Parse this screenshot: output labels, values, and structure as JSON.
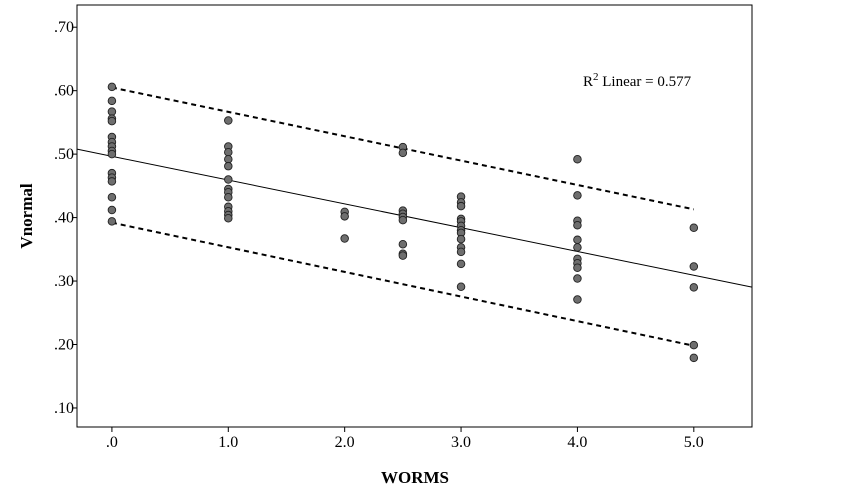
{
  "chart_data": {
    "type": "scatter",
    "title": "",
    "xlabel": "WORMS",
    "ylabel": "Vnormal",
    "xlim": [
      -0.3,
      5.5
    ],
    "ylim": [
      0.07,
      0.735
    ],
    "x_ticks": [
      0,
      1,
      2,
      3,
      4,
      5
    ],
    "x_tick_labels": [
      ".0",
      "1.0",
      "2.0",
      "3.0",
      "4.0",
      "5.0"
    ],
    "y_ticks": [
      0.1,
      0.2,
      0.3,
      0.4,
      0.5,
      0.6,
      0.7
    ],
    "y_tick_labels": [
      ".10",
      ".20",
      ".30",
      ".40",
      ".50",
      ".60",
      ".70"
    ],
    "grid": false,
    "annotation": {
      "r_label": "R",
      "r_sup": "2",
      "text": " Linear = 0.577"
    },
    "fit_line": {
      "intercept": 0.4966,
      "slope": -0.0375,
      "x_range": [
        -0.3,
        5.5
      ]
    },
    "upper_band": {
      "x": [
        0,
        5
      ],
      "y": [
        0.605,
        0.413
      ]
    },
    "lower_band": {
      "x": [
        0,
        5
      ],
      "y": [
        0.392,
        0.198
      ]
    },
    "colors": {
      "point_fill": "#6e6e6e",
      "point_stroke": "#222222",
      "line": "#000000"
    },
    "points": [
      {
        "x": 0,
        "y": 0.606
      },
      {
        "x": 0,
        "y": 0.584
      },
      {
        "x": 0,
        "y": 0.567
      },
      {
        "x": 0,
        "y": 0.556
      },
      {
        "x": 0,
        "y": 0.552
      },
      {
        "x": 0,
        "y": 0.527
      },
      {
        "x": 0,
        "y": 0.519
      },
      {
        "x": 0,
        "y": 0.512
      },
      {
        "x": 0,
        "y": 0.505
      },
      {
        "x": 0,
        "y": 0.5
      },
      {
        "x": 0,
        "y": 0.47
      },
      {
        "x": 0,
        "y": 0.463
      },
      {
        "x": 0,
        "y": 0.457
      },
      {
        "x": 0,
        "y": 0.432
      },
      {
        "x": 0,
        "y": 0.412
      },
      {
        "x": 0,
        "y": 0.394
      },
      {
        "x": 1,
        "y": 0.553
      },
      {
        "x": 1,
        "y": 0.512
      },
      {
        "x": 1,
        "y": 0.503
      },
      {
        "x": 1,
        "y": 0.492
      },
      {
        "x": 1,
        "y": 0.481
      },
      {
        "x": 1,
        "y": 0.46
      },
      {
        "x": 1,
        "y": 0.445
      },
      {
        "x": 1,
        "y": 0.44
      },
      {
        "x": 1,
        "y": 0.432
      },
      {
        "x": 1,
        "y": 0.417
      },
      {
        "x": 1,
        "y": 0.41
      },
      {
        "x": 1,
        "y": 0.404
      },
      {
        "x": 1,
        "y": 0.399
      },
      {
        "x": 2,
        "y": 0.409
      },
      {
        "x": 2,
        "y": 0.402
      },
      {
        "x": 2,
        "y": 0.367
      },
      {
        "x": 2.5,
        "y": 0.511
      },
      {
        "x": 2.5,
        "y": 0.502
      },
      {
        "x": 2.5,
        "y": 0.411
      },
      {
        "x": 2.5,
        "y": 0.406
      },
      {
        "x": 2.5,
        "y": 0.401
      },
      {
        "x": 2.5,
        "y": 0.396
      },
      {
        "x": 2.5,
        "y": 0.358
      },
      {
        "x": 2.5,
        "y": 0.343
      },
      {
        "x": 2.5,
        "y": 0.34
      },
      {
        "x": 3,
        "y": 0.433
      },
      {
        "x": 3,
        "y": 0.424
      },
      {
        "x": 3,
        "y": 0.418
      },
      {
        "x": 3,
        "y": 0.398
      },
      {
        "x": 3,
        "y": 0.394
      },
      {
        "x": 3,
        "y": 0.387
      },
      {
        "x": 3,
        "y": 0.38
      },
      {
        "x": 3,
        "y": 0.376
      },
      {
        "x": 3,
        "y": 0.366
      },
      {
        "x": 3,
        "y": 0.353
      },
      {
        "x": 3,
        "y": 0.346
      },
      {
        "x": 3,
        "y": 0.327
      },
      {
        "x": 3,
        "y": 0.291
      },
      {
        "x": 4,
        "y": 0.492
      },
      {
        "x": 4,
        "y": 0.435
      },
      {
        "x": 4,
        "y": 0.395
      },
      {
        "x": 4,
        "y": 0.388
      },
      {
        "x": 4,
        "y": 0.365
      },
      {
        "x": 4,
        "y": 0.353
      },
      {
        "x": 4,
        "y": 0.335
      },
      {
        "x": 4,
        "y": 0.328
      },
      {
        "x": 4,
        "y": 0.321
      },
      {
        "x": 4,
        "y": 0.304
      },
      {
        "x": 4,
        "y": 0.271
      },
      {
        "x": 5,
        "y": 0.384
      },
      {
        "x": 5,
        "y": 0.323
      },
      {
        "x": 5,
        "y": 0.29
      },
      {
        "x": 5,
        "y": 0.199
      },
      {
        "x": 5,
        "y": 0.179
      }
    ]
  }
}
